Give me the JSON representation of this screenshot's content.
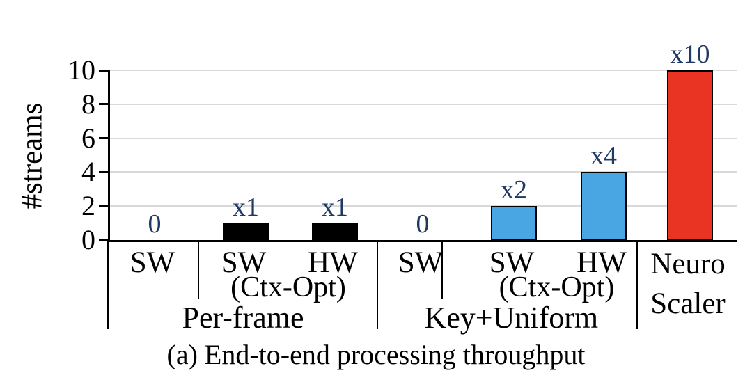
{
  "figure": {
    "caption": "(a) End-to-end processing throughput"
  },
  "colors": {
    "value_label": "#1f3864",
    "black_bar": "#000000",
    "blue_bar": "#4aa5e3",
    "red_bar": "#e93323",
    "gridline": "#d9d9d9",
    "axis": "#000000"
  },
  "chart_data": {
    "type": "bar",
    "title": "(a) End-to-end processing throughput",
    "xlabel": "",
    "ylabel": "#streams",
    "ylim": [
      0,
      10
    ],
    "yticks": [
      0,
      2,
      4,
      6,
      8,
      10
    ],
    "grid": true,
    "legend_position": "none",
    "groups": [
      {
        "label": "Per-frame",
        "bars": [
          {
            "tick": "SW",
            "subtick": "",
            "value": 0,
            "data_label": "0",
            "color": "#000000"
          },
          {
            "tick": "SW",
            "subtick": "(Ctx-Opt)",
            "value": 1,
            "data_label": "x1",
            "color": "#000000"
          },
          {
            "tick": "HW",
            "subtick": "(Ctx-Opt)",
            "value": 1,
            "data_label": "x1",
            "color": "#000000"
          }
        ]
      },
      {
        "label": "Key+Uniform",
        "bars": [
          {
            "tick": "SW",
            "subtick": "",
            "value": 0,
            "data_label": "0",
            "color": "#4aa5e3"
          },
          {
            "tick": "SW",
            "subtick": "(Ctx-Opt)",
            "value": 2,
            "data_label": "x2",
            "color": "#4aa5e3"
          },
          {
            "tick": "HW",
            "subtick": "(Ctx-Opt)",
            "value": 4,
            "data_label": "x4",
            "color": "#4aa5e3"
          }
        ]
      },
      {
        "label": "Neuro Scaler",
        "label_lines": [
          "Neuro",
          "Scaler"
        ],
        "bars": [
          {
            "tick": "",
            "subtick": "",
            "value": 10,
            "data_label": "x10",
            "color": "#e93323"
          }
        ]
      }
    ]
  }
}
